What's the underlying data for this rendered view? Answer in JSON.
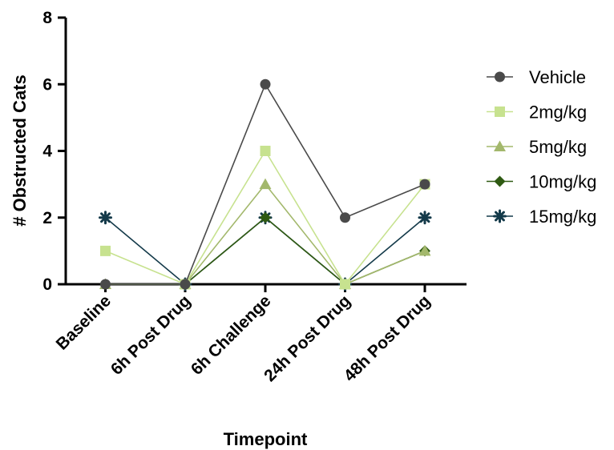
{
  "chart_data": {
    "type": "line",
    "categories": [
      "Baseline",
      "6h  Post Drug",
      "6h  Challenge",
      "24h  Post Drug",
      "48h  Post Drug"
    ],
    "xlabel": "Timepoint",
    "ylabel": "# Obstructed Cats",
    "ylim": [
      0,
      8
    ],
    "yticks": [
      0,
      2,
      4,
      6,
      8
    ],
    "grid": false,
    "legend_position": "right",
    "series": [
      {
        "name": "Vehicle",
        "values": [
          0,
          0,
          6,
          2,
          3
        ],
        "color": "#4a4a4a",
        "marker": "circle"
      },
      {
        "name": "2mg/kg",
        "values": [
          1,
          0,
          4,
          0,
          3
        ],
        "color": "#c7e28f",
        "marker": "square"
      },
      {
        "name": "5mg/kg",
        "values": [
          0,
          0,
          3,
          0,
          1
        ],
        "color": "#a3b86c",
        "marker": "triangle"
      },
      {
        "name": "10mg/kg",
        "values": [
          0,
          0,
          2,
          0,
          1
        ],
        "color": "#2f5a12",
        "marker": "diamond"
      },
      {
        "name": "15mg/kg",
        "values": [
          2,
          0,
          2,
          0,
          2
        ],
        "color": "#143a4a",
        "marker": "asterisk"
      }
    ]
  }
}
